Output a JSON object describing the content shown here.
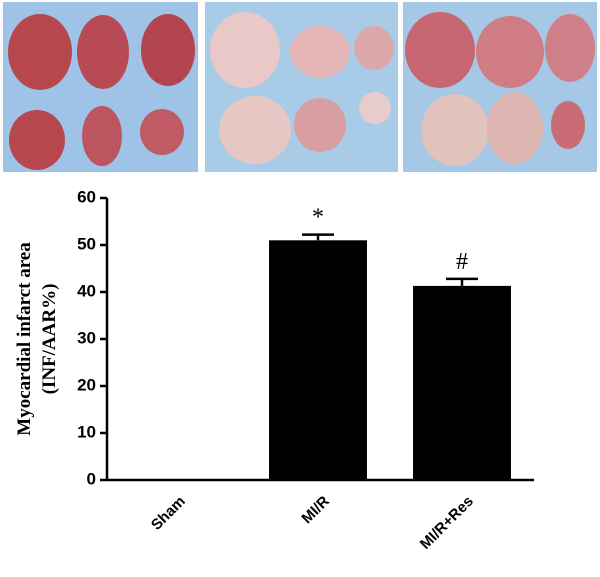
{
  "chart_data": {
    "type": "bar",
    "ylabel": [
      "Myocardial infarct area",
      "(INF/AAR%)"
    ],
    "categories": [
      "Sham",
      "MI/R",
      "MI/R+Res"
    ],
    "values": [
      0,
      51,
      41.3
    ],
    "errors": [
      0,
      1.2,
      1.5
    ],
    "annotations": [
      null,
      "*",
      "#"
    ],
    "color": "#000000",
    "ylim": [
      0,
      60
    ],
    "yticks": [
      0,
      10,
      20,
      30,
      40,
      50,
      60
    ]
  }
}
